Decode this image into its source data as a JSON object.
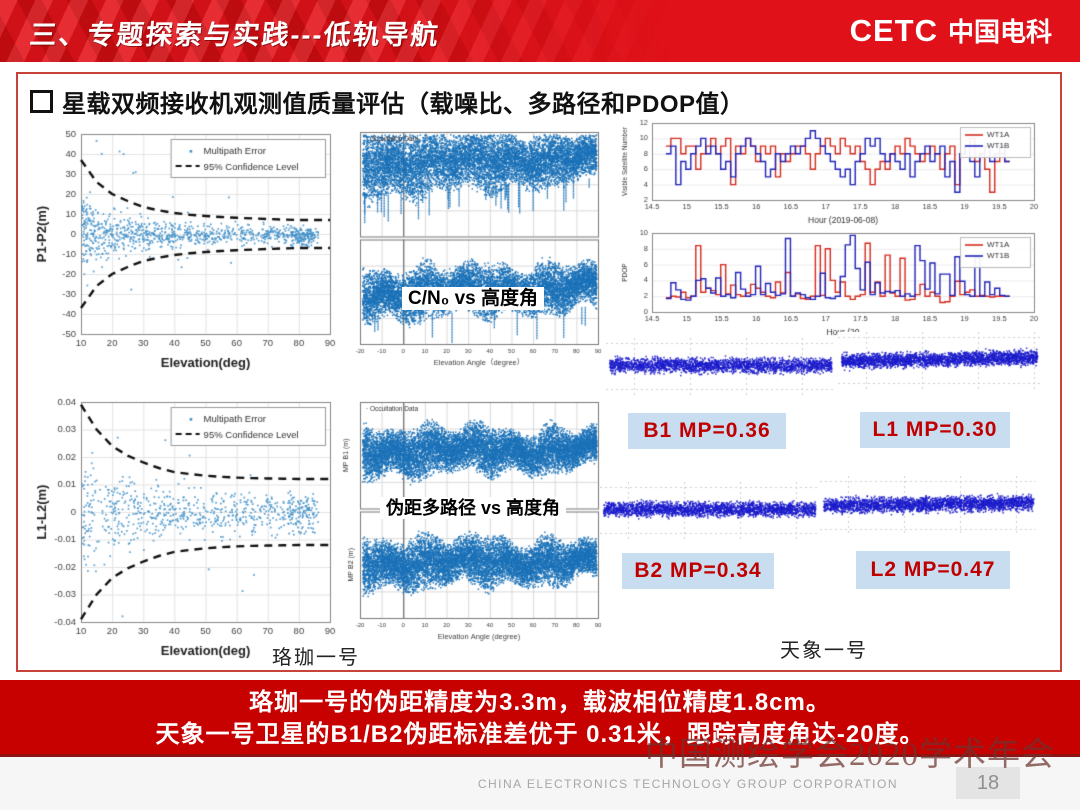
{
  "header": {
    "title": "三、专题探索与实践---低轨导航",
    "logo_text": "CETC",
    "logo_cn": "中国电科",
    "bg_color": "#e01119"
  },
  "slide": {
    "bullet_title": "星载双频接收机观测值质量评估（载噪比、多路径和PDOP值）",
    "left_satellite_label": "珞珈一号",
    "right_satellite_label": "天象一号"
  },
  "chart_data": [
    {
      "id": "p1p2-multipath",
      "type": "scatter",
      "xlabel": "Elevation(deg)",
      "ylabel": "P1-P2(m)",
      "xlim": [
        10,
        90
      ],
      "xticks": [
        10,
        20,
        30,
        40,
        50,
        60,
        70,
        80,
        90
      ],
      "ylim": [
        -50,
        50
      ],
      "yticks": [
        -50,
        -40,
        -30,
        -20,
        -10,
        0,
        10,
        20,
        30,
        40,
        50
      ],
      "ydec": 0,
      "legend": [
        "Multipath Error",
        "95% Confidence Level"
      ],
      "point_color": "#4693c9",
      "envelope": [
        [
          10,
          37
        ],
        [
          15,
          26
        ],
        [
          20,
          20
        ],
        [
          25,
          16.5
        ],
        [
          30,
          13.5
        ],
        [
          35,
          11.8
        ],
        [
          40,
          10.5
        ],
        [
          45,
          9.6
        ],
        [
          50,
          9
        ],
        [
          55,
          8.5
        ],
        [
          60,
          8.1
        ],
        [
          65,
          7.8
        ],
        [
          70,
          7.5
        ],
        [
          75,
          7.2
        ],
        [
          80,
          7
        ],
        [
          85,
          7
        ],
        [
          90,
          7
        ]
      ],
      "n_points": 900,
      "seed": 7,
      "xpow": 1.3,
      "spread": 0.5,
      "outliers": 14,
      "cluster": {
        "n": 80,
        "x": [
          77,
          84
        ],
        "y": [
          -6,
          3
        ]
      },
      "grid": true,
      "legend_position": "top-right"
    },
    {
      "id": "cn0-vs-elevation",
      "type": "band_pair",
      "overlay_label": "C/N₀ vs 高度角",
      "legend": "Occultation Data",
      "xlabel": "Elevation Angle（degree）",
      "xlim": [
        -20,
        90
      ],
      "xticks": [
        -20,
        -10,
        0,
        10,
        20,
        30,
        40,
        50,
        60,
        70,
        80,
        90
      ],
      "band_color": "#1b72b8",
      "n_points": 9000,
      "seed": 21,
      "panels": [
        {
          "ylabel": "",
          "c0": 0.3,
          "c1": 0.24,
          "h0": 0.3,
          "h1": 0.2,
          "streaks": 30
        },
        {
          "ylabel": "",
          "c0": 0.52,
          "c1": 0.44,
          "h0": 0.22,
          "h1": 0.2,
          "streaks": 12
        }
      ]
    },
    {
      "id": "visible-satellite-number",
      "type": "step",
      "ylabel": "Visible Satellite Number",
      "xlabel": "Hour (2019-06-08)",
      "xlim": [
        14.5,
        20
      ],
      "xticks": [
        14.5,
        15,
        15.5,
        16,
        16.5,
        17,
        17.5,
        18,
        18.5,
        19,
        19.5,
        20
      ],
      "ylim": [
        2,
        12
      ],
      "yticks": [
        2,
        4,
        6,
        8,
        10,
        12
      ],
      "x_start": 14.7,
      "x_end": 19.65,
      "series": [
        {
          "name": "WT1A",
          "color": "#d42a1e",
          "values": [
            9,
            10,
            10,
            8,
            9,
            9,
            6,
            8,
            9,
            10,
            8,
            9,
            10,
            4,
            9,
            8,
            10,
            9,
            7,
            9,
            8,
            9,
            5,
            8,
            7,
            8,
            9,
            9,
            8,
            6,
            8,
            9,
            10,
            9,
            8,
            10,
            9,
            8,
            9,
            7,
            6,
            4,
            6,
            7,
            6,
            8,
            9,
            8,
            10,
            9,
            8,
            7,
            8,
            9,
            8,
            6,
            8,
            9,
            4,
            8,
            9,
            10,
            7,
            8,
            6,
            3,
            7,
            8,
            7
          ]
        },
        {
          "name": "WT1B",
          "color": "#2023b8",
          "values": [
            8,
            9,
            4,
            7,
            6,
            8,
            9,
            10,
            8,
            9,
            8,
            6,
            7,
            5,
            8,
            9,
            10,
            9,
            8,
            7,
            5,
            6,
            8,
            7,
            8,
            9,
            8,
            9,
            10,
            11,
            10,
            9,
            8,
            7,
            6,
            5,
            6,
            4,
            7,
            8,
            10,
            9,
            10,
            8,
            7,
            8,
            7,
            6,
            8,
            5,
            7,
            8,
            9,
            7,
            8,
            9,
            5,
            7,
            3,
            8,
            9,
            7,
            5,
            8,
            9,
            7,
            8,
            9,
            7
          ]
        }
      ]
    },
    {
      "id": "pdop",
      "type": "step",
      "ylabel": "PDOP",
      "xlabel": "Hour (20",
      "xlim": [
        14.5,
        20
      ],
      "xticks": [
        14.5,
        15,
        15.5,
        16,
        16.5,
        17,
        17.5,
        18,
        18.5,
        19,
        19.5,
        20
      ],
      "ylim": [
        0,
        10
      ],
      "yticks": [
        0,
        2,
        4,
        6,
        8,
        10
      ],
      "x_start": 14.7,
      "x_end": 19.65,
      "series": [
        {
          "name": "WT1A",
          "color": "#d42a1e",
          "values": [
            1.8,
            2,
            1.9,
            2.5,
            1.8,
            2,
            8.4,
            2.5,
            3,
            2.7,
            2.2,
            6,
            2.3,
            3.4,
            2.2,
            2,
            2.4,
            3.5,
            3,
            2.5,
            2,
            1.8,
            3.8,
            2.4,
            5,
            2,
            2.3,
            1.7,
            1.6,
            2,
            8.4,
            2.1,
            8,
            4,
            2.5,
            3.8,
            2,
            1.6,
            2,
            2.2,
            8.7,
            2.5,
            3.8,
            2,
            7.2,
            2.4,
            2,
            6.8,
            1.5,
            1.6,
            2.2,
            3.5,
            2,
            2.5,
            2,
            1.2,
            1.3,
            2,
            3.9,
            2.2,
            2.5,
            2.8,
            2,
            2.1,
            2,
            1.9,
            2,
            2,
            2
          ]
        },
        {
          "name": "WT1B",
          "color": "#2023b8",
          "values": [
            1.7,
            3.7,
            2.8,
            1.6,
            1.5,
            2,
            4,
            4.2,
            3,
            2.4,
            4.3,
            2,
            2.2,
            1.8,
            5,
            2.9,
            2,
            2.2,
            5.8,
            2.2,
            3.6,
            2.5,
            2.1,
            2.3,
            9.3,
            2,
            2.4,
            2.2,
            1.8,
            1.6,
            2,
            4.9,
            1.8,
            1.7,
            2,
            4.5,
            8.5,
            9.7,
            5.5,
            2.8,
            6.3,
            2.2,
            3.7,
            2.4,
            2.6,
            2.5,
            2.7,
            2,
            2.3,
            2,
            8.4,
            6.5,
            2.9,
            6.2,
            2.3,
            4.8,
            4.8,
            2.1,
            7,
            3.9,
            2.2,
            2,
            6.9,
            2,
            3.8,
            2.2,
            3,
            2.1,
            2
          ]
        }
      ]
    },
    {
      "id": "l1l2-multipath",
      "type": "scatter",
      "xlabel": "Elevation(deg)",
      "ylabel": "L1-L2(m)",
      "xlim": [
        10,
        90
      ],
      "xticks": [
        10,
        20,
        30,
        40,
        50,
        60,
        70,
        80,
        90
      ],
      "ylim": [
        -0.04,
        0.04
      ],
      "yticks": [
        -0.04,
        -0.03,
        -0.02,
        -0.01,
        0,
        0.01,
        0.02,
        0.03,
        0.04
      ],
      "ydec": 2,
      "legend": [
        "Multipath Error",
        "95% Confidence Level"
      ],
      "point_color": "#4693c9",
      "envelope": [
        [
          10,
          0.039
        ],
        [
          15,
          0.03
        ],
        [
          20,
          0.024
        ],
        [
          25,
          0.0205
        ],
        [
          30,
          0.018
        ],
        [
          35,
          0.016
        ],
        [
          40,
          0.0145
        ],
        [
          45,
          0.0138
        ],
        [
          50,
          0.0132
        ],
        [
          55,
          0.0128
        ],
        [
          60,
          0.0125
        ],
        [
          65,
          0.0123
        ],
        [
          70,
          0.0122
        ],
        [
          75,
          0.0121
        ],
        [
          80,
          0.012
        ],
        [
          85,
          0.012
        ],
        [
          90,
          0.012
        ]
      ],
      "n_points": 680,
      "seed": 13,
      "xpow": 1.25,
      "spread": 0.5,
      "outliers": 10,
      "cluster": {
        "n": 50,
        "x": [
          76,
          85
        ],
        "y": [
          -0.008,
          0.006
        ]
      },
      "grid": true,
      "legend_position": "top-right"
    },
    {
      "id": "pseudorange-multipath-vs-elevation",
      "type": "band_pair",
      "overlay_label": "伪距多路径 vs 高度角",
      "legend": "Occultation Data",
      "xlabel": "Elevation Angle (degree)",
      "xlim": [
        -20,
        90
      ],
      "xticks": [
        -20,
        -10,
        0,
        10,
        20,
        30,
        40,
        50,
        60,
        70,
        80,
        90
      ],
      "band_color": "#1b72b8",
      "n_points": 9500,
      "seed": 33,
      "panels": [
        {
          "ylabel": "MP B1 (m)",
          "c0": 0.46,
          "c1": 0.44,
          "h0": 0.21,
          "h1": 0.17,
          "streaks": 0
        },
        {
          "ylabel": "MP B2 (m)",
          "c0": 0.48,
          "c1": 0.46,
          "h0": 0.22,
          "h1": 0.17,
          "streaks": 0
        }
      ]
    },
    {
      "id": "b1-strip",
      "type": "strip",
      "label": "B1 MP=0.36",
      "mp_value": 0.36,
      "color": "#1c1ccc",
      "n": 2400,
      "seed": 51,
      "slope": 0
    },
    {
      "id": "l1-strip",
      "type": "strip",
      "label": "L1 MP=0.30",
      "mp_value": 0.3,
      "color": "#1c1ccc",
      "n": 2600,
      "seed": 52,
      "slope": 0.6
    },
    {
      "id": "b2-strip",
      "type": "strip",
      "label": "B2 MP=0.34",
      "mp_value": 0.34,
      "color": "#1c1ccc",
      "n": 2500,
      "seed": 53,
      "slope": 0
    },
    {
      "id": "l2-strip",
      "type": "strip",
      "label": "L2 MP=0.47",
      "mp_value": 0.47,
      "color": "#1c1ccc",
      "n": 2700,
      "seed": 54,
      "slope": 0.4
    }
  ],
  "banner": {
    "line1": "珞珈一号的伪距精度为3.3m，载波相位精度1.8cm。",
    "line2": "天象一号卫星的B1/B2伪距标准差优于 0.31米，跟踪高度角达-20度。",
    "bg_color": "#c70000"
  },
  "watermark": "中国测绘学会2020学术年会",
  "footer": {
    "company": "CHINA ELECTRONICS TECHNOLOGY GROUP CORPORATION",
    "page": "18"
  }
}
